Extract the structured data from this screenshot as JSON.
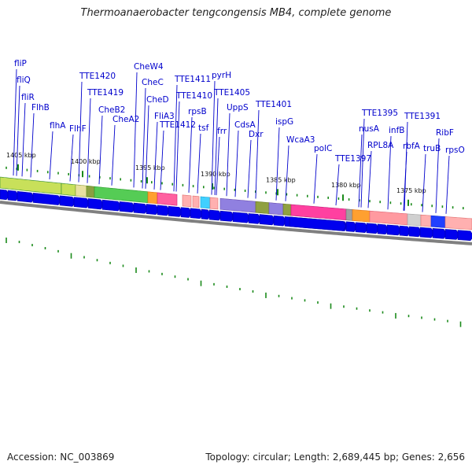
{
  "title": "Thermoanaerobacter tengcongensis MB4, complete genome",
  "footer": {
    "accession": "Accession: NC_003869",
    "stats": "Topology: circular; Length: 2,689,445 bp; Genes: 2,656"
  },
  "colors": {
    "gene_label": "#0000cc",
    "gene_arrow": "#0000ee",
    "ruler_tick": "#1a8a1a",
    "backbone": "#808080"
  },
  "ruler": [
    {
      "label": "1405 kbp"
    },
    {
      "label": "1400 kbp"
    },
    {
      "label": "1395 kbp"
    },
    {
      "label": "1390 kbp"
    },
    {
      "label": "1385 kbp"
    },
    {
      "label": "1380 kbp"
    },
    {
      "label": "1375 kbp"
    }
  ],
  "genes": [
    {
      "label": "fliP"
    },
    {
      "label": "fliQ"
    },
    {
      "label": "fliR"
    },
    {
      "label": "FlhB"
    },
    {
      "label": "flhA"
    },
    {
      "label": "FlhF"
    },
    {
      "label": "TTE1420"
    },
    {
      "label": "TTE1419"
    },
    {
      "label": "CheB2"
    },
    {
      "label": "CheA2"
    },
    {
      "label": "CheW4"
    },
    {
      "label": "CheC"
    },
    {
      "label": "CheD"
    },
    {
      "label": "FliA3"
    },
    {
      "label": "TTE1412"
    },
    {
      "label": "TTE1411"
    },
    {
      "label": "TTE1410"
    },
    {
      "label": "rpsB"
    },
    {
      "label": "tsf"
    },
    {
      "label": "pyrH"
    },
    {
      "label": "TTE1405"
    },
    {
      "label": "frr"
    },
    {
      "label": "UppS"
    },
    {
      "label": "CdsA"
    },
    {
      "label": "Dxr"
    },
    {
      "label": "TTE1401"
    },
    {
      "label": "ispG"
    },
    {
      "label": "WcaA3"
    },
    {
      "label": "polC"
    },
    {
      "label": "TTE1397"
    },
    {
      "label": "TTE1395"
    },
    {
      "label": "nusA"
    },
    {
      "label": "RPL8A"
    },
    {
      "label": "infB"
    },
    {
      "label": "TTE1391"
    },
    {
      "label": "rbfA"
    },
    {
      "label": "truB"
    },
    {
      "label": "RibF"
    },
    {
      "label": "rpsO"
    }
  ]
}
